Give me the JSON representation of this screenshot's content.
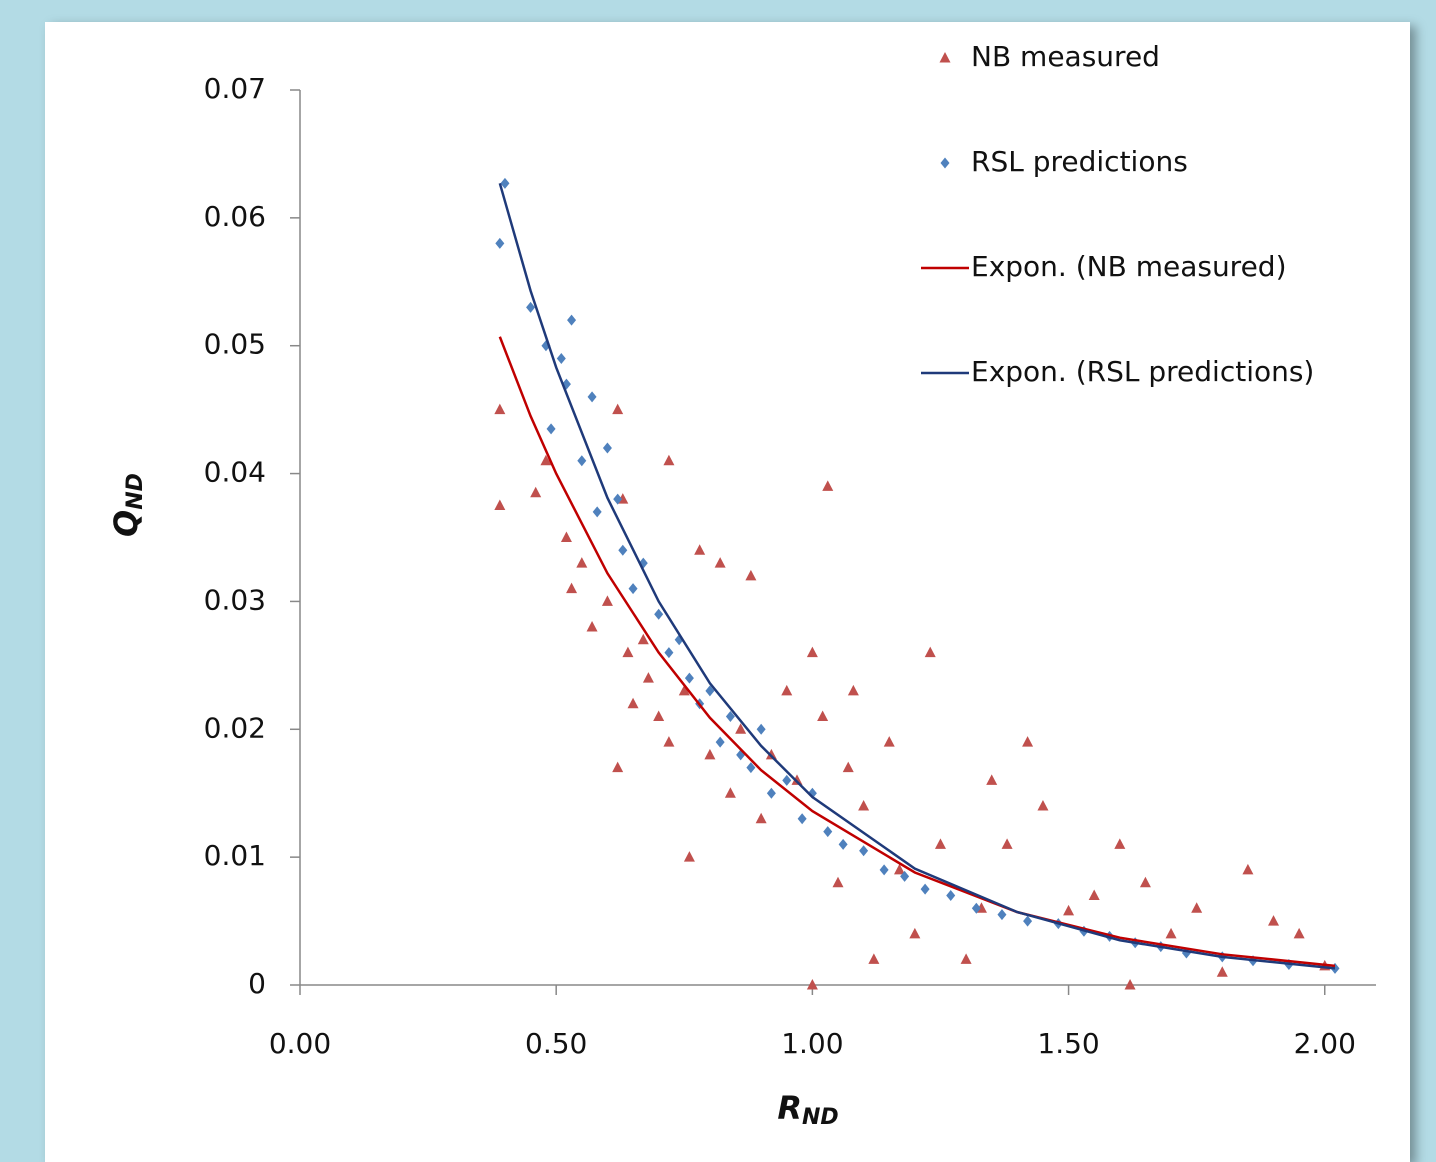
{
  "chart_data": {
    "type": "scatter",
    "xlabel": "R",
    "xlabel_sub": "ND",
    "ylabel": "Q",
    "ylabel_sub": "ND",
    "xlim": [
      0,
      2.1
    ],
    "xticks": [
      {
        "value": 0,
        "label": "0.00"
      },
      {
        "value": 0.5,
        "label": "0.50"
      },
      {
        "value": 1,
        "label": "1.00"
      },
      {
        "value": 1.5,
        "label": "1.50"
      },
      {
        "value": 2,
        "label": "2.00"
      }
    ],
    "ylim": [
      0,
      0.07
    ],
    "yticks": [
      0,
      0.01,
      0.02,
      0.03,
      0.04,
      0.05,
      0.06,
      0.07
    ],
    "legend": "top-right",
    "series": [
      {
        "name": "NB measured",
        "type": "scatter",
        "marker": "triangle",
        "color": "#c0504d",
        "x": [
          0.39,
          0.39,
          0.46,
          0.48,
          0.52,
          0.53,
          0.55,
          0.57,
          0.6,
          0.62,
          0.62,
          0.63,
          0.64,
          0.65,
          0.67,
          0.68,
          0.7,
          0.72,
          0.72,
          0.75,
          0.76,
          0.78,
          0.8,
          0.82,
          0.84,
          0.86,
          0.88,
          0.9,
          0.92,
          0.95,
          0.97,
          1.0,
          1.0,
          1.02,
          1.03,
          1.05,
          1.07,
          1.08,
          1.1,
          1.12,
          1.15,
          1.17,
          1.2,
          1.23,
          1.25,
          1.3,
          1.33,
          1.35,
          1.38,
          1.42,
          1.45,
          1.5,
          1.55,
          1.6,
          1.62,
          1.65,
          1.7,
          1.75,
          1.8,
          1.85,
          1.9,
          1.95,
          2.0
        ],
        "values": [
          0.045,
          0.0375,
          0.0385,
          0.041,
          0.035,
          0.031,
          0.033,
          0.028,
          0.03,
          0.045,
          0.017,
          0.038,
          0.026,
          0.022,
          0.027,
          0.024,
          0.021,
          0.041,
          0.019,
          0.023,
          0.01,
          0.034,
          0.018,
          0.033,
          0.015,
          0.02,
          0.032,
          0.013,
          0.018,
          0.023,
          0.016,
          0.0,
          0.026,
          0.021,
          0.039,
          0.008,
          0.017,
          0.023,
          0.014,
          0.002,
          0.019,
          0.009,
          0.004,
          0.026,
          0.011,
          0.002,
          0.006,
          0.016,
          0.011,
          0.019,
          0.014,
          0.0058,
          0.007,
          0.011,
          0.0,
          0.008,
          0.004,
          0.006,
          0.001,
          0.009,
          0.005,
          0.004,
          0.0015
        ]
      },
      {
        "name": "RSL predictions",
        "type": "scatter",
        "marker": "diamond",
        "color": "#4f81bd",
        "x": [
          0.39,
          0.4,
          0.45,
          0.48,
          0.49,
          0.51,
          0.52,
          0.53,
          0.55,
          0.57,
          0.58,
          0.6,
          0.62,
          0.63,
          0.65,
          0.67,
          0.7,
          0.72,
          0.74,
          0.76,
          0.78,
          0.8,
          0.82,
          0.84,
          0.86,
          0.88,
          0.9,
          0.92,
          0.95,
          0.98,
          1.0,
          1.03,
          1.06,
          1.1,
          1.14,
          1.18,
          1.22,
          1.27,
          1.32,
          1.37,
          1.42,
          1.48,
          1.53,
          1.58,
          1.63,
          1.68,
          1.73,
          1.8,
          1.86,
          1.93,
          2.02
        ],
        "values": [
          0.058,
          0.0627,
          0.053,
          0.05,
          0.0435,
          0.049,
          0.047,
          0.052,
          0.041,
          0.046,
          0.037,
          0.042,
          0.038,
          0.034,
          0.031,
          0.033,
          0.029,
          0.026,
          0.027,
          0.024,
          0.022,
          0.023,
          0.019,
          0.021,
          0.018,
          0.017,
          0.02,
          0.015,
          0.016,
          0.013,
          0.015,
          0.012,
          0.011,
          0.0105,
          0.009,
          0.0085,
          0.0075,
          0.007,
          0.006,
          0.0055,
          0.005,
          0.0048,
          0.0042,
          0.0038,
          0.0033,
          0.003,
          0.0025,
          0.0022,
          0.0019,
          0.0016,
          0.0013
        ]
      },
      {
        "name": "Expon. (NB measured)",
        "type": "line",
        "color": "#c00000",
        "x": [
          0.39,
          0.45,
          0.5,
          0.6,
          0.7,
          0.8,
          0.9,
          1.0,
          1.2,
          1.4,
          1.6,
          1.8,
          2.02
        ],
        "values": [
          0.0507,
          0.0445,
          0.04,
          0.0322,
          0.026,
          0.0209,
          0.0168,
          0.0136,
          0.0088,
          0.0057,
          0.0037,
          0.0024,
          0.0015
        ]
      },
      {
        "name": "Expon. (RSL predictions)",
        "type": "line",
        "color": "#1f3a7a",
        "x": [
          0.39,
          0.45,
          0.5,
          0.6,
          0.7,
          0.8,
          0.9,
          1.0,
          1.2,
          1.4,
          1.6,
          1.8,
          2.02
        ],
        "values": [
          0.0627,
          0.0543,
          0.0483,
          0.0381,
          0.03,
          0.0236,
          0.0187,
          0.0147,
          0.0091,
          0.0057,
          0.0035,
          0.0022,
          0.0013
        ]
      }
    ]
  }
}
